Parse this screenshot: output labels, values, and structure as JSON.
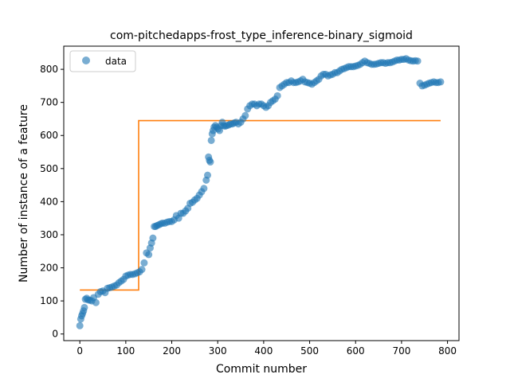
{
  "chart_data": {
    "type": "scatter",
    "title": "com-pitchedapps-frost_type_inference-binary_sigmoid",
    "xlabel": "Commit number",
    "ylabel": "Number of instance of a feature",
    "xlim": [
      -35,
      825
    ],
    "ylim": [
      -20,
      870
    ],
    "xticks": [
      0,
      100,
      200,
      300,
      400,
      500,
      600,
      700,
      800
    ],
    "yticks": [
      0,
      100,
      200,
      300,
      400,
      500,
      600,
      700,
      800
    ],
    "xtick_labels": [
      "0",
      "100",
      "200",
      "300",
      "400",
      "500",
      "600",
      "700",
      "800"
    ],
    "ytick_labels": [
      "0",
      "100",
      "200",
      "300",
      "400",
      "500",
      "600",
      "700",
      "800"
    ],
    "grid": false,
    "legend": {
      "position": "top-left",
      "entries": [
        "data"
      ]
    },
    "colors": {
      "data": "#1f77b4",
      "fit": "#ff7f0e"
    },
    "series": [
      {
        "name": "data",
        "kind": "scatter",
        "x": [
          0,
          2,
          4,
          6,
          8,
          10,
          12,
          15,
          18,
          22,
          26,
          30,
          35,
          40,
          45,
          50,
          55,
          60,
          65,
          70,
          75,
          80,
          85,
          90,
          95,
          100,
          105,
          110,
          115,
          120,
          125,
          130,
          135,
          140,
          145,
          150,
          153,
          156,
          159,
          162,
          165,
          168,
          172,
          176,
          180,
          185,
          190,
          195,
          200,
          205,
          210,
          215,
          220,
          225,
          230,
          235,
          240,
          245,
          250,
          255,
          260,
          265,
          270,
          275,
          278,
          280,
          282,
          284,
          286,
          288,
          290,
          292,
          295,
          298,
          301,
          304,
          307,
          310,
          313,
          316,
          320,
          324,
          328,
          332,
          336,
          340,
          345,
          350,
          355,
          360,
          365,
          370,
          375,
          380,
          385,
          390,
          395,
          400,
          405,
          410,
          415,
          420,
          425,
          430,
          435,
          440,
          445,
          450,
          455,
          460,
          465,
          470,
          475,
          480,
          485,
          490,
          495,
          500,
          505,
          510,
          515,
          520,
          525,
          530,
          535,
          540,
          545,
          550,
          555,
          560,
          565,
          570,
          575,
          580,
          585,
          590,
          595,
          600,
          605,
          610,
          615,
          620,
          625,
          630,
          635,
          640,
          645,
          650,
          655,
          660,
          665,
          670,
          675,
          680,
          685,
          690,
          695,
          700,
          705,
          710,
          715,
          720,
          725,
          730,
          735,
          740,
          745,
          750,
          755,
          760,
          765,
          770,
          775,
          780,
          785
        ],
        "y": [
          25,
          45,
          55,
          62,
          70,
          80,
          105,
          108,
          103,
          102,
          100,
          110,
          95,
          120,
          128,
          130,
          125,
          138,
          140,
          142,
          145,
          148,
          155,
          160,
          165,
          175,
          178,
          180,
          180,
          182,
          185,
          188,
          195,
          215,
          245,
          240,
          260,
          275,
          290,
          325,
          325,
          328,
          330,
          333,
          335,
          335,
          338,
          340,
          340,
          345,
          358,
          350,
          365,
          365,
          372,
          380,
          395,
          398,
          405,
          410,
          420,
          430,
          440,
          465,
          480,
          535,
          525,
          520,
          585,
          605,
          615,
          625,
          630,
          625,
          620,
          615,
          630,
          640,
          630,
          628,
          630,
          632,
          635,
          635,
          638,
          640,
          635,
          640,
          650,
          660,
          680,
          690,
          695,
          695,
          690,
          695,
          695,
          690,
          685,
          690,
          700,
          705,
          710,
          720,
          745,
          750,
          755,
          760,
          760,
          765,
          760,
          760,
          762,
          765,
          770,
          762,
          760,
          758,
          755,
          760,
          765,
          770,
          780,
          785,
          785,
          780,
          783,
          785,
          790,
          790,
          795,
          800,
          802,
          805,
          808,
          808,
          808,
          810,
          812,
          815,
          820,
          825,
          820,
          818,
          815,
          815,
          816,
          818,
          820,
          820,
          818,
          820,
          820,
          822,
          825,
          828,
          828,
          830,
          830,
          832,
          828,
          826,
          825,
          826,
          825,
          758,
          750,
          752,
          755,
          758,
          760,
          762,
          760,
          760,
          762
        ]
      },
      {
        "name": "",
        "kind": "step",
        "x": [
          0,
          128,
          128,
          785
        ],
        "y": [
          133,
          133,
          645,
          645
        ]
      }
    ]
  }
}
